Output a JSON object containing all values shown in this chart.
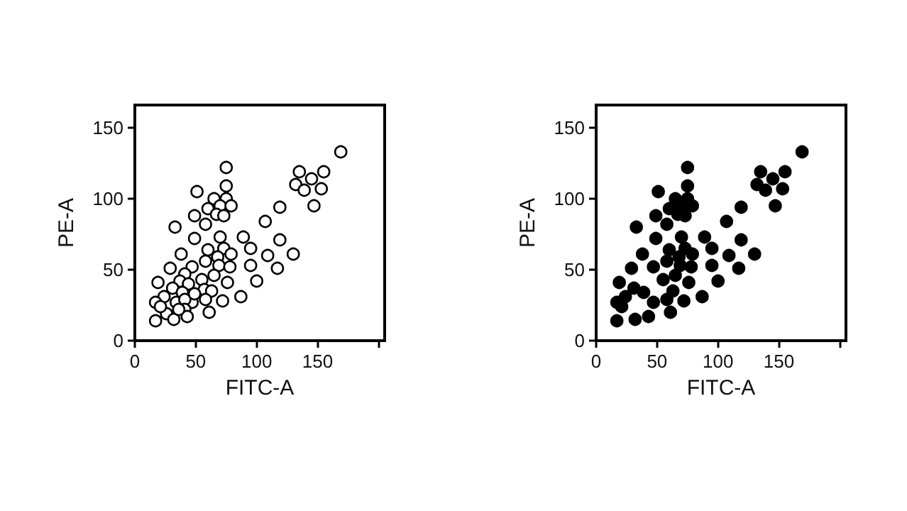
{
  "chart_data": [
    {
      "type": "scatter",
      "xlabel": "FITC-A",
      "ylabel": "PE-A",
      "xlim": [
        0,
        205
      ],
      "ylim": [
        0,
        166
      ],
      "xticks": [
        0,
        50,
        100,
        150,
        {
          "value": 200,
          "label": null
        }
      ],
      "yticks": [
        0,
        50,
        100,
        150
      ],
      "grid": false,
      "marker": "circle",
      "series": [
        {
          "color": "#ffffff",
          "x": [
            169,
            135,
            145,
            155,
            132,
            139,
            153,
            147,
            75,
            75,
            51,
            65,
            75,
            60,
            70,
            79,
            49,
            58,
            67,
            73,
            33,
            119,
            107,
            89,
            49,
            70,
            95,
            119,
            109,
            130,
            60,
            73,
            38,
            68,
            79,
            58,
            69,
            78,
            95,
            117,
            47,
            29,
            65,
            55,
            41,
            37,
            44,
            76,
            100,
            19,
            31,
            57,
            63,
            39,
            24,
            34,
            47,
            17,
            41,
            58,
            87,
            72,
            26,
            41,
            61,
            17,
            32,
            43,
            21,
            36,
            49
          ],
          "values": [
            133,
            119,
            114,
            119,
            110,
            106,
            107,
            95,
            122,
            109,
            105,
            100,
            100,
            93,
            95,
            95,
            88,
            82,
            89,
            88,
            80,
            94,
            84,
            73,
            72,
            73,
            65,
            71,
            60,
            61,
            64,
            65,
            61,
            59,
            61,
            56,
            53,
            52,
            53,
            51,
            52,
            51,
            46,
            43,
            47,
            42,
            40,
            41,
            42,
            41,
            37,
            36,
            35,
            34,
            31,
            27,
            27,
            27,
            29,
            29,
            31,
            28,
            19,
            22,
            20,
            14,
            15,
            17,
            24,
            22,
            33
          ]
        }
      ]
    },
    {
      "type": "scatter",
      "xlabel": "FITC-A",
      "ylabel": "PE-A",
      "xlim": [
        0,
        205
      ],
      "ylim": [
        0,
        166
      ],
      "xticks": [
        0,
        50,
        100,
        150,
        {
          "value": 200,
          "label": null
        }
      ],
      "yticks": [
        0,
        50,
        100,
        150
      ],
      "grid": false,
      "marker": "circle",
      "series": [
        {
          "color": "#000000",
          "x": [
            169,
            135,
            145,
            155,
            132,
            139,
            153,
            147,
            75,
            75,
            51,
            65,
            75,
            60,
            70,
            79,
            49,
            58,
            67,
            73,
            33,
            119,
            107,
            89,
            49,
            70,
            95,
            119,
            109,
            130,
            60,
            73,
            38,
            68,
            79,
            58,
            69,
            78,
            95,
            117,
            47,
            29,
            65,
            55,
            76,
            100,
            19,
            31,
            63,
            39,
            24,
            47,
            17,
            58,
            87,
            72,
            61,
            17,
            32,
            43,
            21
          ],
          "values": [
            133,
            119,
            114,
            119,
            110,
            106,
            107,
            95,
            122,
            109,
            105,
            100,
            100,
            93,
            95,
            95,
            88,
            82,
            89,
            88,
            80,
            94,
            84,
            73,
            72,
            73,
            65,
            71,
            60,
            61,
            64,
            65,
            61,
            59,
            61,
            56,
            53,
            52,
            53,
            51,
            52,
            51,
            46,
            43,
            41,
            42,
            41,
            37,
            35,
            34,
            31,
            27,
            27,
            29,
            31,
            28,
            20,
            14,
            15,
            17,
            24
          ]
        }
      ]
    }
  ]
}
